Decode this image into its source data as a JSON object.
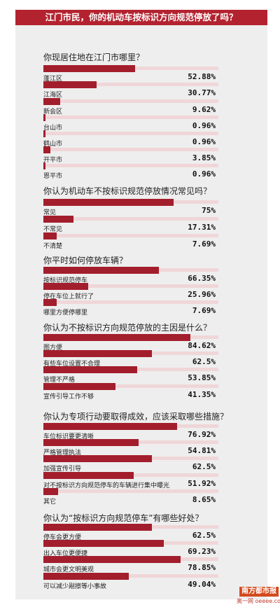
{
  "header": {
    "title": "江门市民，你的机动车按标识方向规范停放了吗？"
  },
  "questions": [
    {
      "title": "你现居住地在江门市哪里？",
      "options": [
        {
          "label": "蓬江区",
          "pct": "52.88%",
          "value": 52.88
        },
        {
          "label": "江海区",
          "pct": "30.77%",
          "value": 30.77
        },
        {
          "label": "新会区",
          "pct": "9.62%",
          "value": 9.62
        },
        {
          "label": "台山市",
          "pct": "0.96%",
          "value": 0.96
        },
        {
          "label": "鹤山市",
          "pct": "0.96%",
          "value": 0.96
        },
        {
          "label": "开平市",
          "pct": "3.85%",
          "value": 3.85
        },
        {
          "label": "恩平市",
          "pct": "0.96%",
          "value": 0.96
        }
      ]
    },
    {
      "title": "你认为机动车不按标识规范停放情况常见吗？",
      "options": [
        {
          "label": "常见",
          "pct": "75%",
          "value": 75
        },
        {
          "label": "不常见",
          "pct": "17.31%",
          "value": 17.31
        },
        {
          "label": "不清楚",
          "pct": "7.69%",
          "value": 7.69
        }
      ]
    },
    {
      "title": "你平时如何停放车辆？",
      "options": [
        {
          "label": "按标识规范停车",
          "pct": "66.35%",
          "value": 66.35
        },
        {
          "label": "停在车位上就行了",
          "pct": "25.96%",
          "value": 25.96
        },
        {
          "label": "哪里方便停哪里",
          "pct": "7.69%",
          "value": 7.69
        }
      ]
    },
    {
      "title": "你认为不按标识方向规范停放的主因是什么？",
      "options": [
        {
          "label": "图方便",
          "pct": "84.62%",
          "value": 84.62
        },
        {
          "label": "有些车位设置不合理",
          "pct": "62.5%",
          "value": 62.5
        },
        {
          "label": "管理不严格",
          "pct": "53.85%",
          "value": 53.85
        },
        {
          "label": "宣传引导工作不够",
          "pct": "41.35%",
          "value": 41.35
        }
      ]
    },
    {
      "title": "你认为专项行动要取得成效，应该采取哪些措施？",
      "options": [
        {
          "label": "车位标识要更清晰",
          "pct": "76.92%",
          "value": 76.92
        },
        {
          "label": "严格管理执法",
          "pct": "54.81%",
          "value": 54.81
        },
        {
          "label": "加强宣传引导",
          "pct": "62.5%",
          "value": 62.5
        },
        {
          "label": "对不按标识方向规范停车的车辆进行集中曝光",
          "pct": "51.92%",
          "value": 51.92
        },
        {
          "label": "其它",
          "pct": "8.65%",
          "value": 8.65
        }
      ]
    },
    {
      "title": "你认为“按标识方向规范停车”有哪些好处？",
      "options": [
        {
          "label": "停车会更方便",
          "pct": "62.5%",
          "value": 62.5
        },
        {
          "label": "出入车位更便捷",
          "pct": "69.23%",
          "value": 69.23
        },
        {
          "label": "城市会更文明美观",
          "pct": "78.85%",
          "value": 78.85
        },
        {
          "label": "可以减少剐擦等小事故",
          "pct": "49.04%",
          "value": 49.04
        }
      ]
    }
  ],
  "logo": {
    "line1": "南方都市报",
    "line2": "奥一网 oeeee.com"
  },
  "colors": {
    "accent": "#b3232f",
    "bar": "#a31e2c",
    "track": "#f0d6d8",
    "panel": "#eeeeee"
  }
}
